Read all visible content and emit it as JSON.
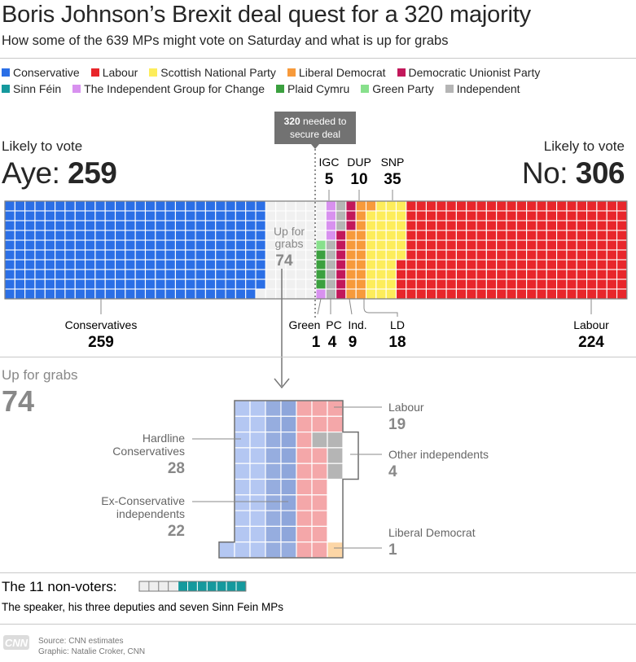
{
  "header": {
    "title": "Boris Johnson’s Brexit deal quest for a 320 majority",
    "subtitle": "How some of the 639 MPs might vote on Saturday and what is up for grabs"
  },
  "legend": [
    {
      "label": "Conservative",
      "color": "#2b6fe6"
    },
    {
      "label": "Labour",
      "color": "#e8262b"
    },
    {
      "label": "Scottish National Party",
      "color": "#fded5b"
    },
    {
      "label": "Liberal Democrat",
      "color": "#f79a3b"
    },
    {
      "label": "Democratic Unionist Party",
      "color": "#c2185b"
    },
    {
      "label": "Sinn Féin",
      "color": "#15999d"
    },
    {
      "label": "The Independent Group for Change",
      "color": "#d891ef"
    },
    {
      "label": "Plaid Cymru",
      "color": "#3ba03f"
    },
    {
      "label": "Green Party",
      "color": "#88e08c"
    },
    {
      "label": "Independent",
      "color": "#b5b5b5"
    }
  ],
  "aye": {
    "caption": "Likely to vote",
    "label": "Aye: ",
    "value": "259"
  },
  "no": {
    "caption": "Likely to vote",
    "label": "No: ",
    "value": "306"
  },
  "threshold": {
    "number": "320",
    "text1": " needed to",
    "text2": "secure deal"
  },
  "chart_data": [
    {
      "type": "waffle",
      "title": "",
      "threshold": 320,
      "series": [
        {
          "name": "Conservatives",
          "value": 259,
          "color": "#2b6fe6",
          "side": "aye"
        },
        {
          "name": "Up for grabs",
          "value": 74,
          "color": "#f0f0f0",
          "side": "undecided"
        },
        {
          "name": "Green",
          "value": 1,
          "color": "#88e08c",
          "side": "no"
        },
        {
          "name": "PC",
          "value": 4,
          "color": "#3ba03f",
          "side": "no"
        },
        {
          "name": "IGC",
          "value": 5,
          "color": "#d891ef",
          "side": "no"
        },
        {
          "name": "Ind.",
          "value": 9,
          "color": "#b5b5b5",
          "side": "no"
        },
        {
          "name": "DUP",
          "value": 10,
          "color": "#c2185b",
          "side": "no"
        },
        {
          "name": "LD",
          "value": 18,
          "color": "#f79a3b",
          "side": "no"
        },
        {
          "name": "SNP",
          "value": 35,
          "color": "#fded5b",
          "side": "no"
        },
        {
          "name": "Labour",
          "value": 224,
          "color": "#e8262b",
          "side": "no"
        }
      ]
    },
    {
      "type": "waffle",
      "title": "Up for grabs",
      "total": 74,
      "series": [
        {
          "name": "Hardline Conservatives",
          "value": 28,
          "color": "#b4c7f2"
        },
        {
          "name": "Ex-Conservative independents",
          "value": 22,
          "color": "#96addf"
        },
        {
          "name": "Labour",
          "value": 19,
          "color": "#f4a7a9"
        },
        {
          "name": "Other independents",
          "value": 4,
          "color": "#b5b5b5"
        },
        {
          "name": "Liberal Democrat",
          "value": 1,
          "color": "#fcd6a6"
        }
      ]
    },
    {
      "type": "waffle",
      "title": "The 11 non-voters:",
      "series": [
        {
          "name": "The speaker and his three deputies",
          "value": 4,
          "color": "#eeeeee"
        },
        {
          "name": "Sinn Fein",
          "value": 7,
          "color": "#15999d"
        }
      ]
    }
  ],
  "labels": {
    "conservatives": {
      "name": "Conservatives",
      "value": "259"
    },
    "labour": {
      "name": "Labour",
      "value": "224"
    },
    "green": {
      "name": "Green",
      "value": "1"
    },
    "pc": {
      "name": "PC",
      "value": "4"
    },
    "ind": {
      "name": "Ind.",
      "value": "9"
    },
    "ld": {
      "name": "LD",
      "value": "18"
    },
    "igc": {
      "name": "IGC",
      "value": "5"
    },
    "dup": {
      "name": "DUP",
      "value": "10"
    },
    "snp": {
      "name": "SNP",
      "value": "35"
    },
    "grabs_line1": "Up for",
    "grabs_line2": "grabs",
    "grabs_value": "74"
  },
  "grabs": {
    "title": "Up for grabs",
    "value": "74",
    "hardline1": "Hardline",
    "hardline2": "Conservatives",
    "hardline_value": "28",
    "excon1": "Ex-Conservative",
    "excon2": "independents",
    "excon_value": "22",
    "labour": "Labour",
    "labour_value": "19",
    "otherind": "Other independents",
    "otherind_value": "4",
    "ld": "Liberal Democrat",
    "ld_value": "1"
  },
  "nonvoters": {
    "title": "The 11 non-voters:",
    "note": "The speaker, his three deputies and seven Sinn Fein MPs"
  },
  "footer": {
    "logo": "CNN",
    "source": "Source: CNN estimates",
    "graphic": "Graphic: Natalie Croker, CNN"
  }
}
